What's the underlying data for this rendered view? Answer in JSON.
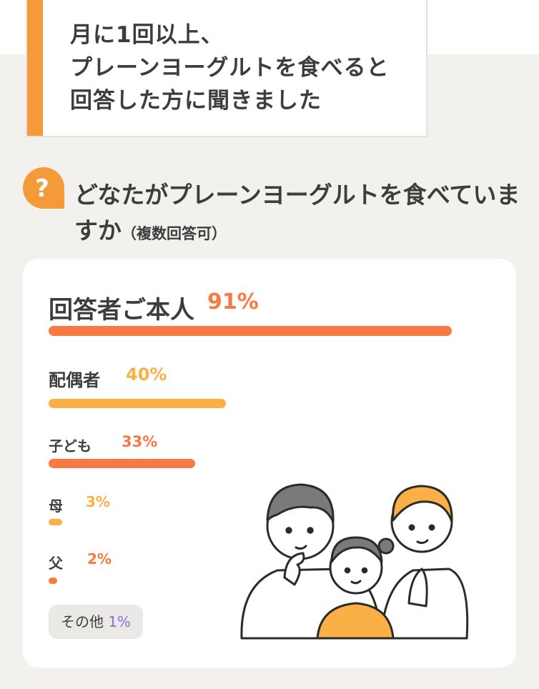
{
  "header": {
    "title_lines": [
      "月に1回以上、",
      "プレーンヨーグルトを食べると",
      "回答した方に聞きました"
    ]
  },
  "question": {
    "icon": "question-mark-icon",
    "text": "どなたがプレーンヨーグルトを食べていますか",
    "note": "（複数回答可）"
  },
  "colors": {
    "orange": "#f77a45",
    "yellow": "#fbb045",
    "purple": "#8a6ce0",
    "accent": "#f49a38"
  },
  "chart_data": {
    "type": "bar",
    "categories": [
      "回答者ご本人",
      "配偶者",
      "子ども",
      "母",
      "父",
      "その他"
    ],
    "values": [
      91,
      40,
      33,
      3,
      2,
      1
    ],
    "value_labels": [
      "91%",
      "40%",
      "33%",
      "3%",
      "2%",
      "1%"
    ],
    "xlim": [
      0,
      100
    ],
    "series": [
      {
        "values": [
          91,
          40,
          33,
          3,
          2,
          1
        ]
      }
    ]
  },
  "illustration": {
    "icon": "family-illustration-icon"
  }
}
